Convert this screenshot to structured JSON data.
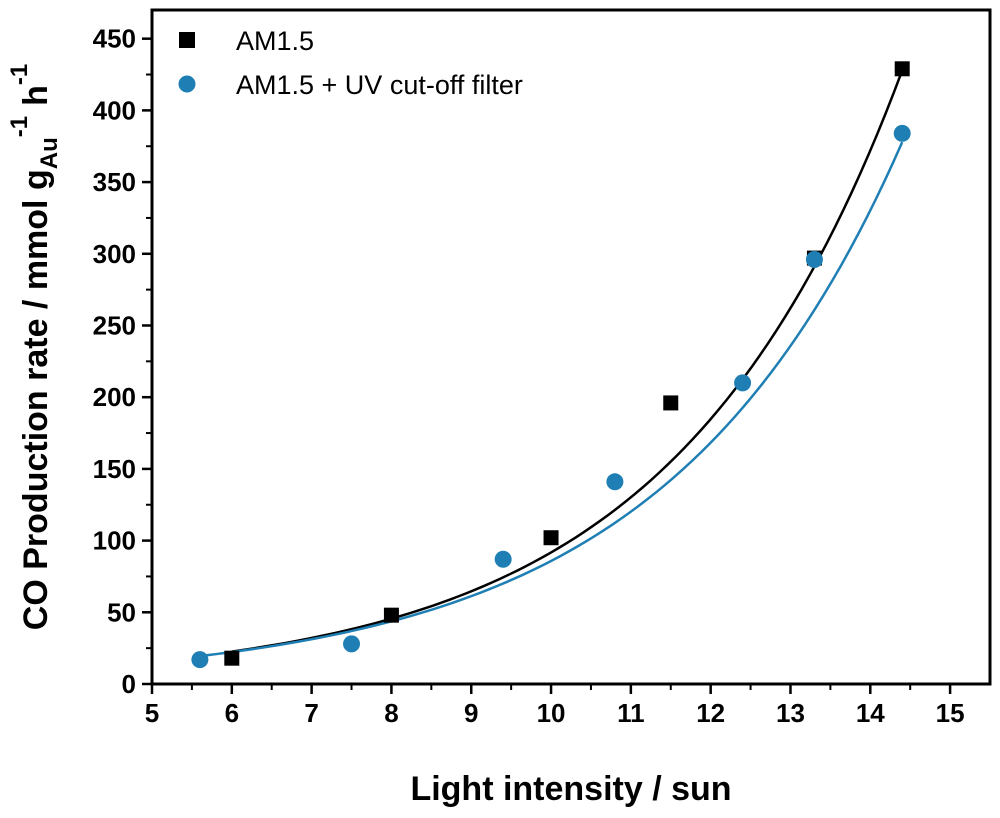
{
  "chart_data": {
    "type": "scatter",
    "xlabel": "Light intensity / sun",
    "ylabel": {
      "main": "CO Production rate / mmol g",
      "sub": "Au",
      "sup": "-1",
      "unit": "h",
      "unit_sup": "-1"
    },
    "xlim": [
      5,
      15.5
    ],
    "ylim": [
      0,
      470
    ],
    "xticks": [
      5,
      6,
      7,
      8,
      9,
      10,
      11,
      12,
      13,
      14,
      15
    ],
    "yticks": [
      0,
      50,
      100,
      150,
      200,
      250,
      300,
      350,
      400,
      450
    ],
    "legend_position": "top-left",
    "series": [
      {
        "name": "AM1.5",
        "marker": "square",
        "color": "#000000",
        "x": [
          6.0,
          8.0,
          10.0,
          11.5,
          13.3,
          14.4
        ],
        "y": [
          18,
          48,
          102,
          196,
          297,
          429
        ],
        "fit": {
          "kind": "exponential",
          "a": 2.77,
          "b": 0.35,
          "x_range": [
            6.0,
            14.4
          ]
        }
      },
      {
        "name": "AM1.5 + UV cut-off filter",
        "marker": "circle",
        "color": "#1f7fb4",
        "x": [
          5.6,
          7.5,
          9.4,
          10.8,
          12.4,
          13.3,
          14.4
        ],
        "y": [
          17,
          28,
          87,
          141,
          210,
          296,
          384
        ],
        "fit": {
          "kind": "exponential",
          "a": 2.95,
          "b": 0.337,
          "x_range": [
            5.6,
            14.4
          ]
        }
      }
    ]
  }
}
